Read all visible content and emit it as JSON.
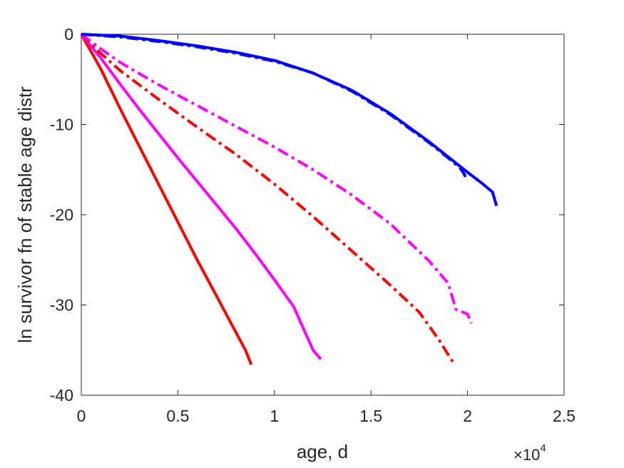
{
  "chart_data": {
    "type": "line",
    "xlabel": "age, d",
    "ylabel": "ln survivor fn of stable age distr",
    "x_exponent": "4",
    "x_exponent_base": "×10",
    "xlim": [
      0,
      25000
    ],
    "ylim": [
      -40,
      0
    ],
    "x_ticks": [
      0,
      5000,
      10000,
      15000,
      20000,
      25000
    ],
    "x_tick_labels": [
      "0",
      "0.5",
      "1",
      "1.5",
      "2",
      "2.5"
    ],
    "y_ticks": [
      0,
      -10,
      -20,
      -30,
      -40
    ],
    "y_tick_labels": [
      "0",
      "-10",
      "-20",
      "-30",
      "-40"
    ],
    "grid": false,
    "legend": "none",
    "series": [
      {
        "color": "#ff0000",
        "style": "solid",
        "x": [
          0,
          1000,
          2000,
          3000,
          4000,
          5000,
          6000,
          7000,
          8000,
          8500,
          8800
        ],
        "y": [
          0,
          -3.8,
          -8.2,
          -12.4,
          -16.6,
          -20.8,
          -25.0,
          -29.0,
          -33.0,
          -35.0,
          -36.6
        ]
      },
      {
        "color": "#ff00ff",
        "style": "solid",
        "x": [
          0,
          1000,
          2000,
          3000,
          4000,
          5000,
          6000,
          7000,
          8000,
          9000,
          10000,
          11000,
          12000,
          12400
        ],
        "y": [
          0,
          -2.6,
          -5.5,
          -8.3,
          -11.0,
          -13.7,
          -16.3,
          -18.9,
          -21.5,
          -24.3,
          -27.2,
          -30.2,
          -35.0,
          -36.0
        ]
      },
      {
        "color": "#ff0000",
        "style": "dashdot",
        "x": [
          0,
          1000,
          2000,
          4000,
          6000,
          8000,
          10000,
          12000,
          14000,
          16000,
          17500,
          18500,
          19000,
          19300
        ],
        "y": [
          0,
          -2.1,
          -4.0,
          -7.2,
          -10.3,
          -13.3,
          -16.6,
          -20.2,
          -24.0,
          -27.8,
          -30.8,
          -33.8,
          -35.5,
          -36.5
        ]
      },
      {
        "color": "#ff00ff",
        "style": "dashdot",
        "x": [
          0,
          1000,
          2000,
          4000,
          6000,
          8000,
          10000,
          12000,
          14000,
          16000,
          18000,
          19000,
          19400,
          20000,
          20200
        ],
        "y": [
          0,
          -1.6,
          -3.1,
          -5.6,
          -7.9,
          -10.2,
          -12.5,
          -15.0,
          -17.8,
          -21.0,
          -25.1,
          -27.6,
          -30.5,
          -31.0,
          -32.0
        ]
      },
      {
        "color": "#0000ff",
        "style": "dashdot",
        "x": [
          0,
          2000,
          4000,
          6000,
          8000,
          10000,
          12000,
          14000,
          16000,
          18000,
          19000,
          19600,
          19800,
          19900
        ],
        "y": [
          0,
          -0.3,
          -0.8,
          -1.4,
          -2.1,
          -3.0,
          -4.3,
          -6.3,
          -8.9,
          -12.0,
          -13.7,
          -14.8,
          -15.4,
          -15.8
        ]
      },
      {
        "color": "#0000ff",
        "style": "solid",
        "x": [
          0,
          2000,
          4000,
          6000,
          8000,
          10000,
          12000,
          14000,
          16000,
          18000,
          20000,
          20800,
          21300,
          21500
        ],
        "y": [
          0,
          -0.2,
          -0.7,
          -1.3,
          -2.0,
          -2.9,
          -4.3,
          -6.2,
          -8.8,
          -11.9,
          -15.3,
          -16.6,
          -17.5,
          -19.0
        ]
      }
    ]
  }
}
